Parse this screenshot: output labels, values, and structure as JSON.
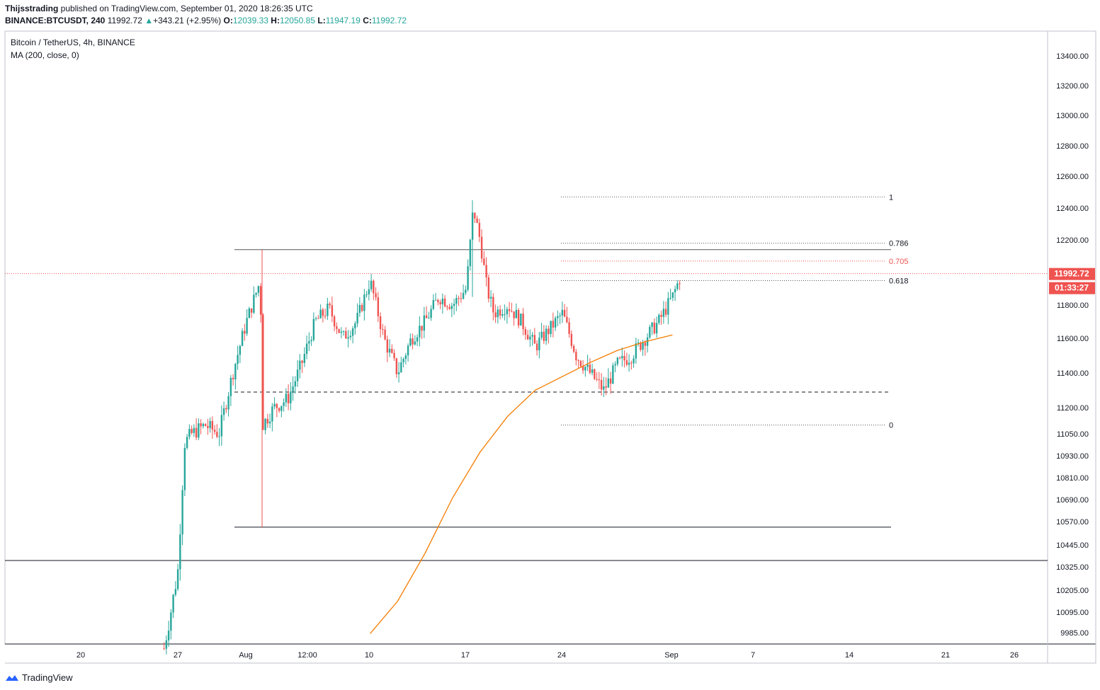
{
  "header": {
    "author": "Thijsstrading",
    "published_text": " published on TradingView.com, September 01, 2020 18:26:35 UTC",
    "symbol": "BINANCE:BTCUSDT, 240",
    "last": "11992.72",
    "change": "+343.21 (+2.95%)",
    "o_label": "O:",
    "o_value": "12039.33",
    "h_label": "H:",
    "h_value": "12050.85",
    "l_label": "L:",
    "l_value": "11947.19",
    "c_label": "C:",
    "c_value": "11992.72"
  },
  "legend": {
    "series": "Bitcoin / TetherUS, 4h, BINANCE",
    "indicator": "MA (200, close, 0)"
  },
  "brand": "TradingView",
  "colors": {
    "up": "#26a69a",
    "down": "#ef5350",
    "ma": "#f57c00",
    "price_tag": "#ef5350",
    "grid_text": "#131722"
  },
  "chart_data": {
    "type": "candlestick",
    "title": "Bitcoin / TetherUS, 4h, BINANCE",
    "x_ticks": [
      "20",
      "27",
      "Aug",
      "12:00",
      "10",
      "17",
      "24",
      "Sep",
      "7",
      "14",
      "21",
      "26"
    ],
    "y_ticks": [
      "13400.00",
      "13200.00",
      "13000.00",
      "12800.00",
      "12600.00",
      "12400.00",
      "12200.00",
      "11800.00",
      "11600.00",
      "11400.00",
      "11200.00",
      "11050.00",
      "10930.00",
      "10810.00",
      "10690.00",
      "10570.00",
      "10445.00",
      "10325.00",
      "10205.00",
      "10095.00",
      "9985.00"
    ],
    "last_price": "11992.72",
    "countdown": "01:33:27",
    "fib_levels": [
      {
        "label": "1",
        "value": 12470
      },
      {
        "label": "0.786",
        "value": 12180
      },
      {
        "label": "0.705",
        "value": 12070
      },
      {
        "label": "0.618",
        "value": 11950
      },
      {
        "label": "0",
        "value": 11100
      }
    ],
    "horizontal_lines": [
      {
        "value": 12140,
        "style": "solid"
      },
      {
        "value": 11290,
        "style": "dashed"
      },
      {
        "value": 10540,
        "style": "solid"
      },
      {
        "value": 10360,
        "style": "solid"
      }
    ],
    "price_path": [
      {
        "date": "Jul 26",
        "value": 9900
      },
      {
        "date": "Jul 27",
        "value": 10300
      },
      {
        "date": "Jul 27 12:00",
        "value": 11000
      },
      {
        "date": "Jul 28",
        "value": 11050
      },
      {
        "date": "Jul 29",
        "value": 11100
      },
      {
        "date": "Jul 30",
        "value": 11050
      },
      {
        "date": "Jul 31",
        "value": 11400
      },
      {
        "date": "Aug 1",
        "value": 11700
      },
      {
        "date": "Aug 2",
        "value": 11950
      },
      {
        "date": "Aug 2 04:00",
        "value": 11100
      },
      {
        "date": "Aug 3",
        "value": 11200
      },
      {
        "date": "Aug 4",
        "value": 11250
      },
      {
        "date": "Aug 5",
        "value": 11450
      },
      {
        "date": "Aug 6",
        "value": 11700
      },
      {
        "date": "Aug 7",
        "value": 11780
      },
      {
        "date": "Aug 8",
        "value": 11600
      },
      {
        "date": "Aug 9",
        "value": 11700
      },
      {
        "date": "Aug 10",
        "value": 11950
      },
      {
        "date": "Aug 11",
        "value": 11600
      },
      {
        "date": "Aug 12",
        "value": 11400
      },
      {
        "date": "Aug 13",
        "value": 11600
      },
      {
        "date": "Aug 14",
        "value": 11700
      },
      {
        "date": "Aug 15",
        "value": 11850
      },
      {
        "date": "Aug 16",
        "value": 11800
      },
      {
        "date": "Aug 17",
        "value": 11900
      },
      {
        "date": "Aug 17 12:00",
        "value": 12400
      },
      {
        "date": "Aug 18",
        "value": 12200
      },
      {
        "date": "Aug 18 12:00",
        "value": 11900
      },
      {
        "date": "Aug 19",
        "value": 11750
      },
      {
        "date": "Aug 20",
        "value": 11800
      },
      {
        "date": "Aug 21",
        "value": 11700
      },
      {
        "date": "Aug 22",
        "value": 11550
      },
      {
        "date": "Aug 23",
        "value": 11650
      },
      {
        "date": "Aug 24",
        "value": 11750
      },
      {
        "date": "Aug 25",
        "value": 11500
      },
      {
        "date": "Aug 26",
        "value": 11400
      },
      {
        "date": "Aug 27",
        "value": 11300
      },
      {
        "date": "Aug 28",
        "value": 11450
      },
      {
        "date": "Aug 29",
        "value": 11500
      },
      {
        "date": "Aug 30",
        "value": 11600
      },
      {
        "date": "Aug 31",
        "value": 11700
      },
      {
        "date": "Sep 1",
        "value": 11850
      },
      {
        "date": "Sep 1 16:00",
        "value": 11992.72
      }
    ],
    "ma_path": [
      {
        "date": "Aug 10",
        "value": 9980
      },
      {
        "date": "Aug 12",
        "value": 10150
      },
      {
        "date": "Aug 14",
        "value": 10400
      },
      {
        "date": "Aug 16",
        "value": 10700
      },
      {
        "date": "Aug 18",
        "value": 10950
      },
      {
        "date": "Aug 20",
        "value": 11150
      },
      {
        "date": "Aug 22",
        "value": 11300
      },
      {
        "date": "Aug 24",
        "value": 11380
      },
      {
        "date": "Aug 26",
        "value": 11460
      },
      {
        "date": "Aug 28",
        "value": 11530
      },
      {
        "date": "Aug 30",
        "value": 11580
      },
      {
        "date": "Sep 1",
        "value": 11620
      }
    ]
  }
}
